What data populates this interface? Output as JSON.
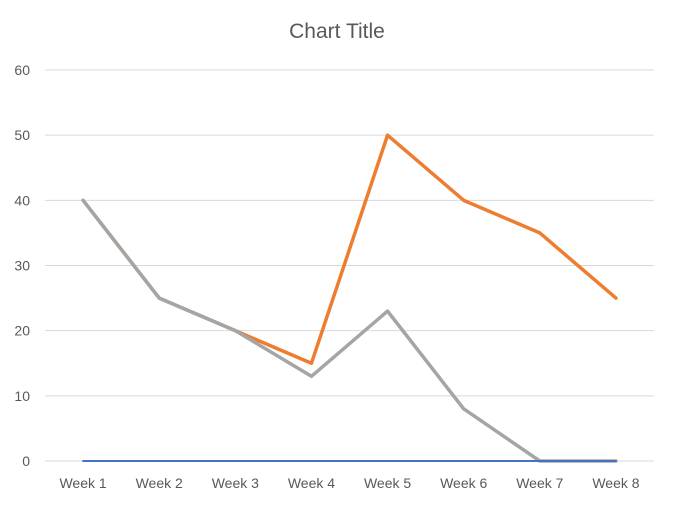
{
  "chart_data": {
    "type": "line",
    "title": "Chart Title",
    "xlabel": "",
    "ylabel": "",
    "categories": [
      "Week 1",
      "Week 2",
      "Week 3",
      "Week 4",
      "Week 5",
      "Week 6",
      "Week 7",
      "Week 8"
    ],
    "ylim": [
      0,
      60
    ],
    "yticks": [
      0,
      10,
      20,
      30,
      40,
      50,
      60
    ],
    "yticklabels": [
      "0",
      "10",
      "20",
      "30",
      "40",
      "50",
      "60"
    ],
    "grid": true,
    "legend": "none",
    "series": [
      {
        "color": "#4472c4",
        "values": [
          0,
          0,
          0,
          0,
          0,
          0,
          0,
          0
        ]
      },
      {
        "color": "#ed7d31",
        "values": [
          40,
          25,
          20,
          15,
          50,
          40,
          35,
          25
        ]
      },
      {
        "color": "#a5a5a5",
        "values": [
          40,
          25,
          20,
          13,
          23,
          8,
          0,
          0
        ]
      }
    ]
  }
}
